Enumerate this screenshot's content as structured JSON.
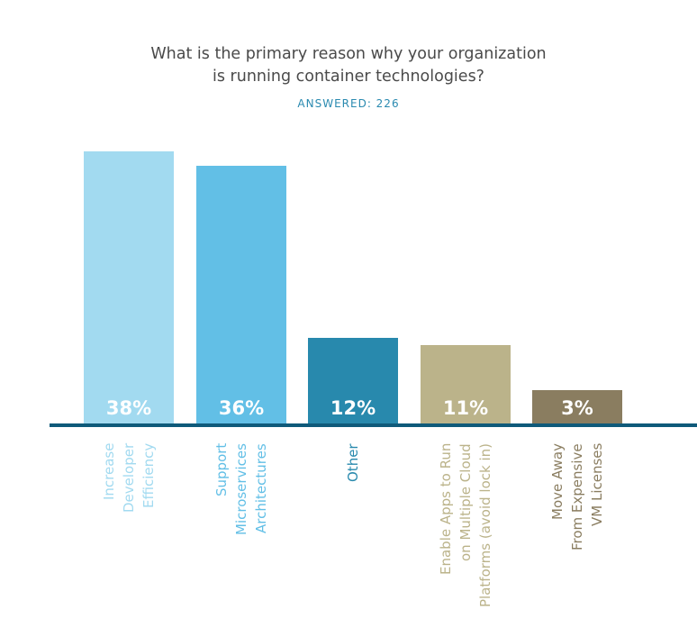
{
  "chart_data": {
    "type": "bar",
    "title": "What is the primary reason why your organization is running container technologies?",
    "title_lines": [
      "What is the primary reason why your organization",
      "is running container technologies?"
    ],
    "subtitle": "ANSWERED: 226",
    "categories": [
      "Increase\nDeveloper\nEfficiency",
      "Support\nMicroservices\nArchitectures",
      "Other",
      "Enable Apps to Run\non Multiple Cloud\nPlatforms (avoid lock in)",
      "Move Away\nFrom Expensive\nVM Licenses"
    ],
    "values": [
      38,
      36,
      12,
      11,
      3
    ],
    "data_labels": [
      "38%",
      "36%",
      "12%",
      "11%",
      "3%"
    ],
    "colors": [
      "#a2daf0",
      "#62bfe6",
      "#2889ad",
      "#bbb38a",
      "#8a7d60"
    ],
    "axis_color": "#0f5a7a",
    "ylim": [
      0,
      38
    ],
    "grid": false,
    "legend": "none"
  }
}
